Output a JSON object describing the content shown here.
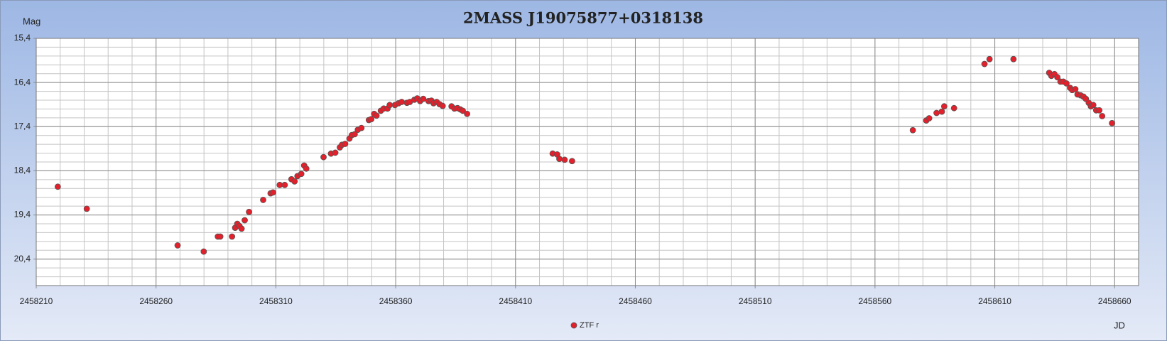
{
  "chart_data": {
    "type": "scatter",
    "title": "2MASS J19075877+0318138",
    "y_label": "Mag",
    "x_label": "JD",
    "xlim": [
      2458210,
      2458670
    ],
    "xticks": [
      2458210,
      2458260,
      2458310,
      2458360,
      2458410,
      2458460,
      2458510,
      2458560,
      2458610,
      2458660
    ],
    "ylim": [
      15.4,
      21.0
    ],
    "y_inverted": true,
    "yticks": [
      {
        "value": 15.4,
        "label": "15,4"
      },
      {
        "value": 16.4,
        "label": "16,4"
      },
      {
        "value": 17.4,
        "label": "17,4"
      },
      {
        "value": 18.4,
        "label": "18,4"
      },
      {
        "value": 19.4,
        "label": "19,4"
      },
      {
        "value": 20.4,
        "label": "20,4"
      }
    ],
    "grid": true,
    "minor_grid_divisions": 5,
    "legend": "bottom",
    "x": [
      2458219.0,
      2458231.1,
      2458269.0,
      2458279.9,
      2458285.8,
      2458286.8,
      2458291.7,
      2458293.0,
      2458293.9,
      2458294.8,
      2458295.7,
      2458297.0,
      2458298.8,
      2458304.7,
      2458307.8,
      2458308.8,
      2458311.6,
      2458313.7,
      2458316.5,
      2458317.8,
      2458319.0,
      2458320.6,
      2458321.8,
      2458322.7,
      2458329.9,
      2458333.0,
      2458334.8,
      2458336.7,
      2458337.6,
      2458338.9,
      2458340.7,
      2458341.7,
      2458342.9,
      2458344.2,
      2458345.7,
      2458348.8,
      2458349.8,
      2458351.0,
      2458352.0,
      2458353.8,
      2458355.0,
      2458356.6,
      2458357.5,
      2458359.7,
      2458361.2,
      2458362.5,
      2458364.7,
      2458365.9,
      2458367.8,
      2458369.0,
      2458370.2,
      2458371.5,
      2458373.7,
      2458374.9,
      2458375.8,
      2458377.1,
      2458378.3,
      2458379.6,
      2458383.3,
      2458384.5,
      2458385.8,
      2458387.0,
      2458388.0,
      2458389.8,
      2458425.5,
      2458427.4,
      2458428.3,
      2458430.5,
      2458433.6,
      2458575.8,
      2458581.4,
      2458582.6,
      2458585.7,
      2458587.9,
      2458588.9,
      2458593.0,
      2458605.7,
      2458607.8,
      2458617.8,
      2458632.7,
      2458633.6,
      2458634.9,
      2458636.1,
      2458637.4,
      2458638.6,
      2458639.9,
      2458641.4,
      2458642.3,
      2458643.6,
      2458644.5,
      2458645.8,
      2458647.0,
      2458648.0,
      2458649.2,
      2458650.1,
      2458651.1,
      2458652.3,
      2458653.6,
      2458654.8,
      2458658.9
    ],
    "series": [
      {
        "name": "ZTF r",
        "color": "#e3202b",
        "values": [
          18.76,
          19.26,
          20.09,
          20.23,
          19.89,
          19.89,
          19.89,
          19.69,
          19.6,
          19.65,
          19.71,
          19.52,
          19.33,
          19.06,
          18.91,
          18.89,
          18.72,
          18.72,
          18.59,
          18.64,
          18.52,
          18.47,
          18.28,
          18.35,
          18.09,
          18.01,
          17.99,
          17.87,
          17.81,
          17.79,
          17.67,
          17.59,
          17.57,
          17.47,
          17.43,
          17.25,
          17.23,
          17.11,
          17.15,
          17.04,
          16.99,
          16.99,
          16.91,
          16.91,
          16.87,
          16.84,
          16.86,
          16.84,
          16.79,
          16.76,
          16.82,
          16.77,
          16.82,
          16.81,
          16.87,
          16.84,
          16.89,
          16.93,
          16.94,
          16.99,
          16.98,
          17.01,
          17.04,
          17.11,
          18.01,
          18.03,
          18.13,
          18.15,
          18.18,
          17.48,
          17.26,
          17.21,
          17.09,
          17.06,
          16.94,
          16.98,
          15.98,
          15.87,
          15.87,
          16.18,
          16.25,
          16.21,
          16.28,
          16.38,
          16.38,
          16.42,
          16.52,
          16.57,
          16.55,
          16.67,
          16.69,
          16.72,
          16.77,
          16.86,
          16.94,
          16.91,
          17.03,
          17.03,
          17.16,
          17.32
        ]
      }
    ]
  }
}
